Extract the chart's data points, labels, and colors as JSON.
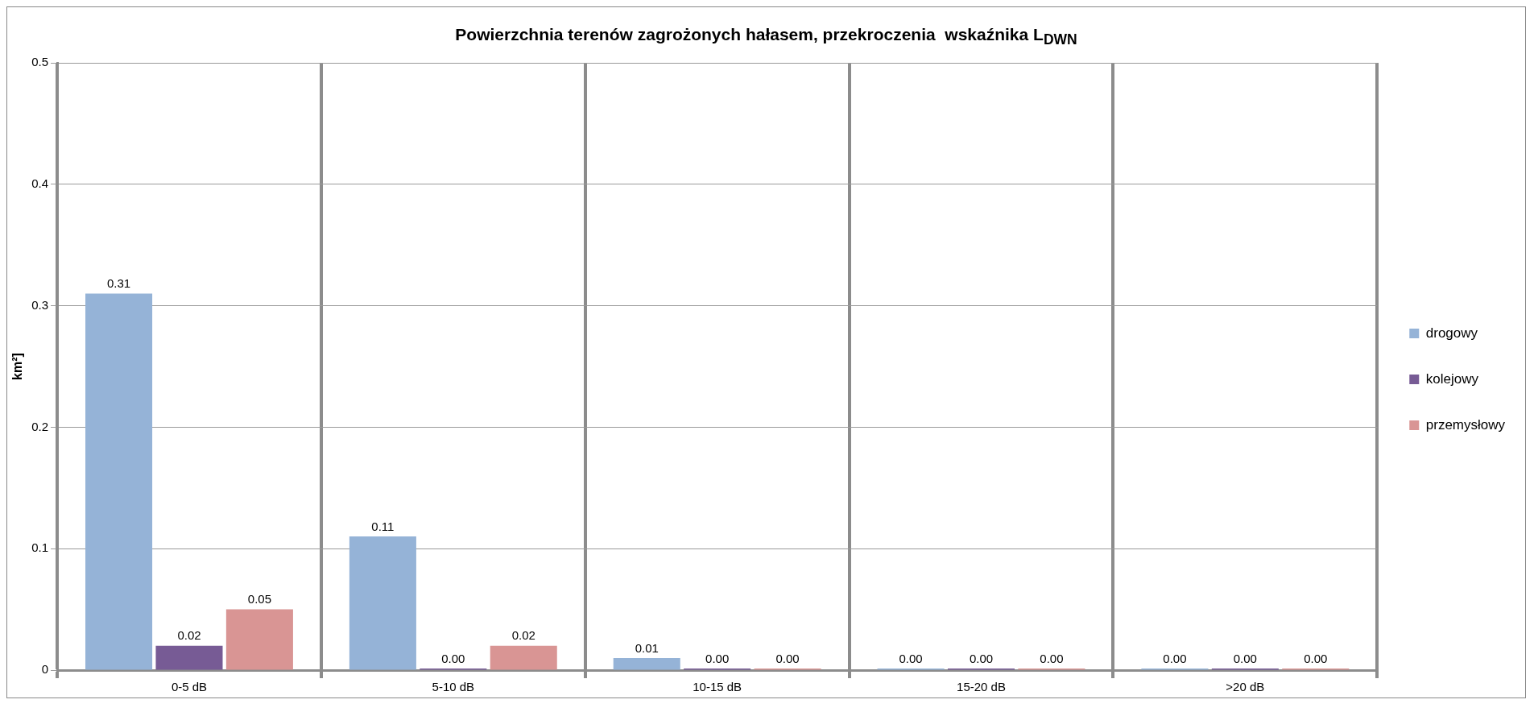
{
  "chart_data": {
    "type": "bar",
    "title": "Powierzchnia terenów zagrożonych hałasem, przekroczenia  wskaźnika L$_{DWN}$",
    "ylabel": "km²]",
    "categories": [
      "0-5 dB",
      "5-10 dB",
      "10-15 dB",
      "15-20 dB",
      ">20 dB"
    ],
    "series": [
      {
        "name": "drogowy",
        "color": "#95b3d7",
        "values": [
          0.31,
          0.11,
          0.01,
          0,
          0
        ],
        "value_labels": [
          "0.31",
          "0.11",
          "0.01",
          "0.00",
          "0.00"
        ]
      },
      {
        "name": "kolejowy",
        "color": "#775b95",
        "values": [
          0.02,
          0,
          0,
          0,
          0
        ],
        "value_labels": [
          "0.02",
          "0.00",
          "0.00",
          "0.00",
          "0.00"
        ]
      },
      {
        "name": "przemysłowy",
        "color": "#d99594",
        "values": [
          0.05,
          0.02,
          0,
          0,
          0
        ],
        "value_labels": [
          "0.05",
          "0.02",
          "0.00",
          "0.00",
          "0.00"
        ]
      }
    ],
    "ylim": [
      0,
      0.5
    ],
    "yticks": [
      0,
      0.1,
      0.2,
      0.3,
      0.4,
      0.5
    ],
    "grid": true,
    "legend": "right"
  }
}
